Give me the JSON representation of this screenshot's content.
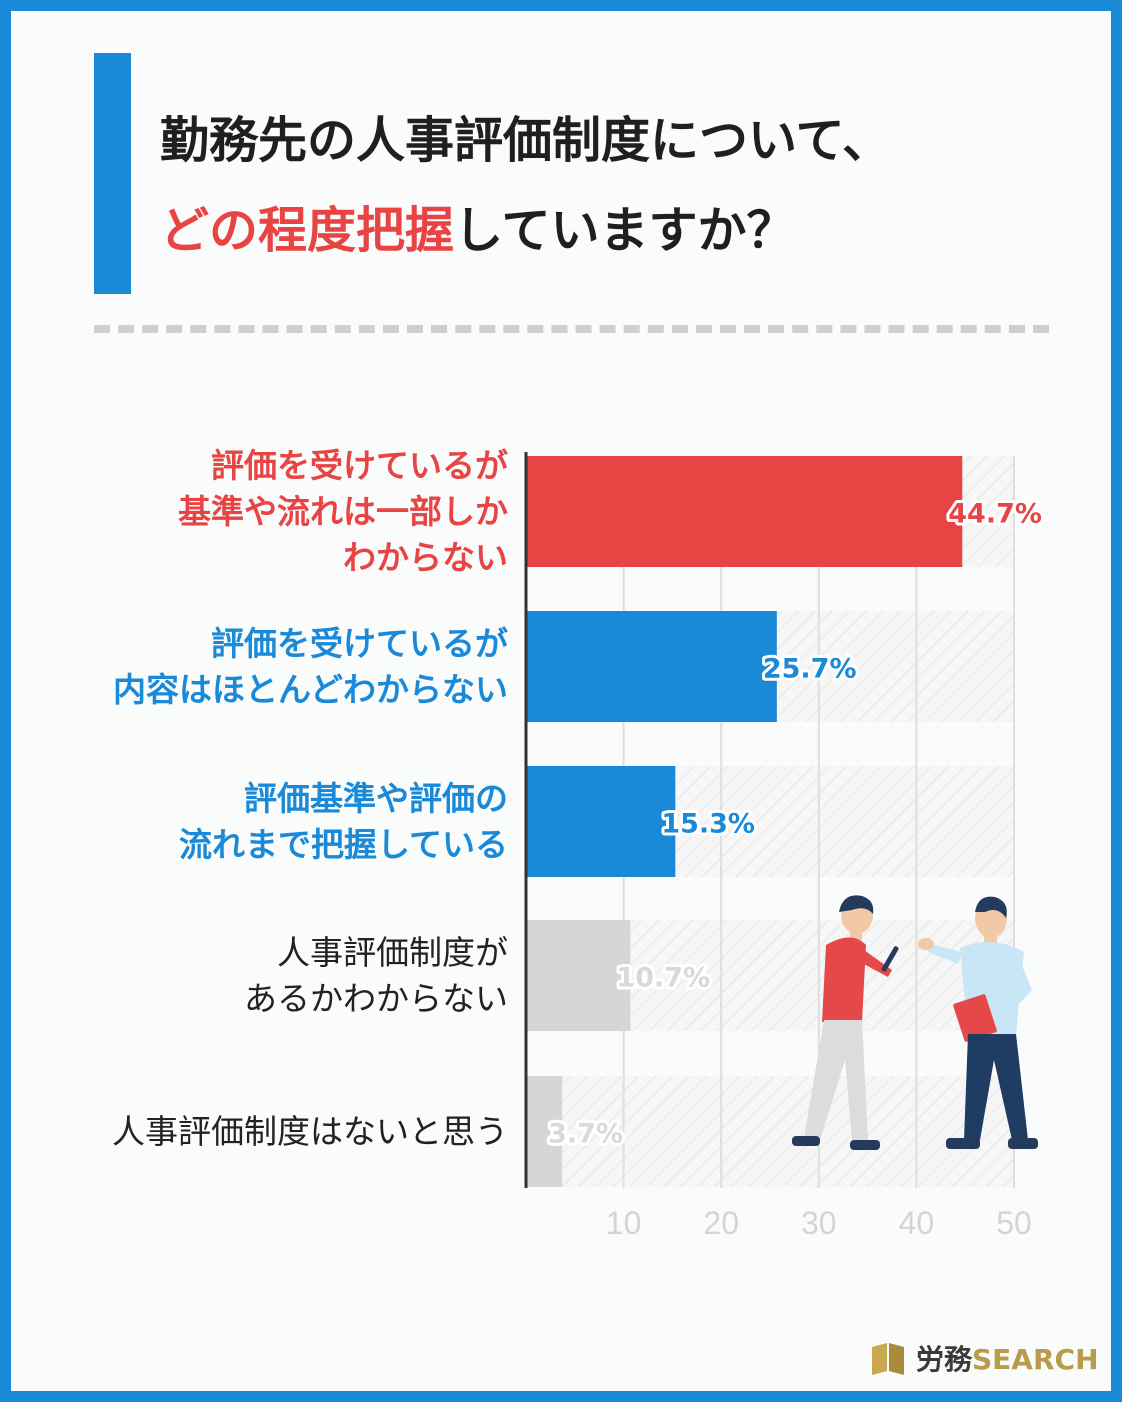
{
  "header": {
    "title_line1": "勤務先の人事評価制度について、",
    "title_line2_accent": "どの程度把握",
    "title_line2_rest": "していますか？"
  },
  "colors": {
    "accent_red": "#e84444",
    "accent_blue": "#1a8ad8",
    "neutral_gray": "#d6d6d6",
    "frame_blue": "#1a8ad8"
  },
  "chart_data": {
    "type": "bar",
    "orientation": "horizontal",
    "categories": [
      "評価を受けているが\n基準や流れは一部しか\nわからない",
      "評価を受けているが\n内容はほとんどわからない",
      "評価基準や評価の\n流れまで把握している",
      "人事評価制度が\nあるかわからない",
      "人事評価制度はないと思う"
    ],
    "values": [
      44.7,
      25.7,
      15.3,
      10.7,
      3.7
    ],
    "value_labels": [
      "44.7%",
      "25.7%",
      "15.3%",
      "10.7%",
      "3.7%"
    ],
    "bar_colors": [
      "#e84444",
      "#1a8ad8",
      "#1a8ad8",
      "#d6d6d6",
      "#d6d6d6"
    ],
    "label_colors": [
      "#e84444",
      "#1a8ad8",
      "#1a8ad8",
      "#222222",
      "#222222"
    ],
    "x_ticks": [
      "10",
      "20",
      "30",
      "40",
      "50"
    ],
    "xlim": [
      0,
      50
    ],
    "unit": "%",
    "grid": true
  },
  "illustration": {
    "description_icon": "two-people-discussing-icon"
  },
  "logo": {
    "part1": "労務",
    "part2": "SEARCH"
  }
}
